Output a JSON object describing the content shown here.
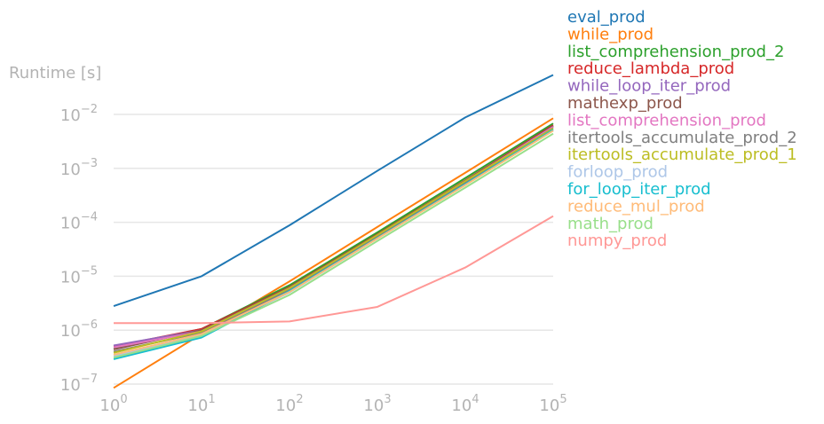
{
  "chart_data": {
    "type": "line",
    "title": "",
    "xlabel": "",
    "ylabel": "Runtime [s]",
    "xscale": "log",
    "yscale": "log",
    "xlim": [
      1,
      100000
    ],
    "ylim": [
      1e-07,
      0.06
    ],
    "grid": "horizontal",
    "legend_placement": "right",
    "x": [
      1,
      10,
      100,
      1000,
      10000,
      100000
    ],
    "x_ticks": [
      {
        "base": "10",
        "exp": "0",
        "value": 1
      },
      {
        "base": "10",
        "exp": "1",
        "value": 10
      },
      {
        "base": "10",
        "exp": "2",
        "value": 100
      },
      {
        "base": "10",
        "exp": "3",
        "value": 1000
      },
      {
        "base": "10",
        "exp": "4",
        "value": 10000
      },
      {
        "base": "10",
        "exp": "5",
        "value": 100000
      }
    ],
    "y_ticks": [
      {
        "base": "10",
        "exp": "−7",
        "value": 1e-07
      },
      {
        "base": "10",
        "exp": "−6",
        "value": 1e-06
      },
      {
        "base": "10",
        "exp": "−5",
        "value": 1e-05
      },
      {
        "base": "10",
        "exp": "−4",
        "value": 0.0001
      },
      {
        "base": "10",
        "exp": "−3",
        "value": 0.001
      },
      {
        "base": "10",
        "exp": "−2",
        "value": 0.01
      }
    ],
    "series": [
      {
        "name": "eval_prod",
        "color": "#1f77b4",
        "values": [
          2.8e-06,
          1e-05,
          8.8e-05,
          0.0009,
          0.0088,
          0.054
        ]
      },
      {
        "name": "while_prod",
        "color": "#ff7f0e",
        "values": [
          8.5e-08,
          8.5e-07,
          8e-06,
          8.2e-05,
          0.00083,
          0.0085
        ]
      },
      {
        "name": "list_comprehension_prod_2",
        "color": "#2ca02c",
        "values": [
          4.5e-07,
          1.05e-06,
          6.8e-06,
          6.5e-05,
          0.00066,
          0.0068
        ]
      },
      {
        "name": "reduce_lambda_prod",
        "color": "#d62728",
        "values": [
          5e-07,
          1.05e-06,
          6.3e-06,
          6e-05,
          0.0006,
          0.0063
        ]
      },
      {
        "name": "while_loop_iter_prod",
        "color": "#9467bd",
        "values": [
          5.2e-07,
          1e-06,
          6e-06,
          5.8e-05,
          0.00058,
          0.006
        ]
      },
      {
        "name": "mathexp_prod",
        "color": "#8c564b",
        "values": [
          4.4e-07,
          1e-06,
          6.2e-06,
          5.9e-05,
          0.00059,
          0.0061
        ]
      },
      {
        "name": "list_comprehension_prod",
        "color": "#e377c2",
        "values": [
          4.8e-07,
          9.5e-07,
          6e-06,
          5.7e-05,
          0.00057,
          0.0059
        ]
      },
      {
        "name": "itertools_accumulate_prod_2",
        "color": "#7f7f7f",
        "values": [
          4e-07,
          9e-07,
          5.6e-06,
          5.5e-05,
          0.00055,
          0.0056
        ]
      },
      {
        "name": "itertools_accumulate_prod_1",
        "color": "#bcbd22",
        "values": [
          3.8e-07,
          9.5e-07,
          6e-06,
          5.8e-05,
          0.00058,
          0.0055
        ]
      },
      {
        "name": "forloop_prod",
        "color": "#aec7e8",
        "values": [
          3.3e-07,
          8e-07,
          5e-06,
          5e-05,
          0.0005,
          0.0051
        ]
      },
      {
        "name": "for_loop_iter_prod",
        "color": "#17becf",
        "values": [
          2.9e-07,
          7.3e-07,
          5.3e-06,
          5.1e-05,
          0.00051,
          0.0052
        ]
      },
      {
        "name": "reduce_mul_prod",
        "color": "#ffbb78",
        "values": [
          3.5e-07,
          8.5e-07,
          5.1e-06,
          5e-05,
          0.00049,
          0.005
        ]
      },
      {
        "name": "math_prod",
        "color": "#98df8a",
        "values": [
          3.1e-07,
          7.8e-07,
          4.5e-06,
          4.5e-05,
          0.00044,
          0.0044
        ]
      },
      {
        "name": "numpy_prod",
        "color": "#ff9896",
        "values": [
          1.35e-06,
          1.35e-06,
          1.45e-06,
          2.7e-06,
          1.45e-05,
          0.00013
        ]
      }
    ]
  }
}
